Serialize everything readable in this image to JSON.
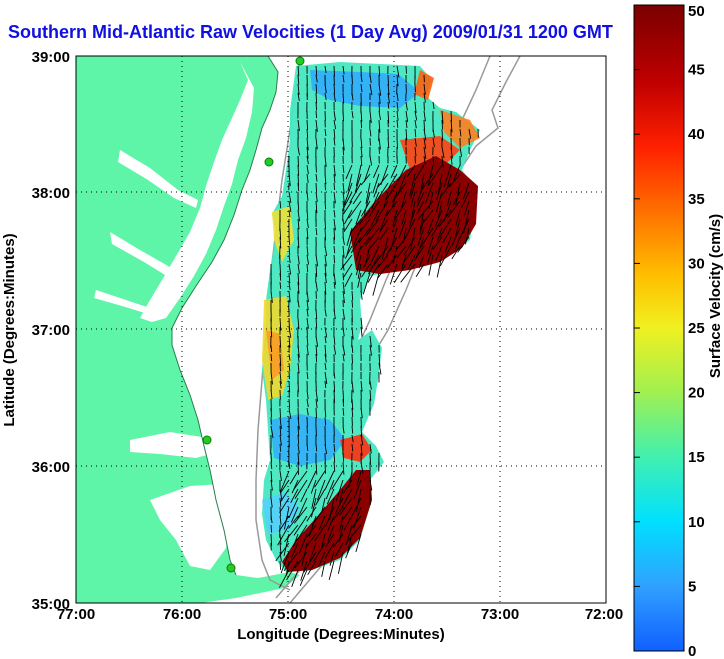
{
  "title": "Southern Mid-Atlantic Raw Velocities (1 Day Avg) 2009/01/31 1200 GMT",
  "x_axis": {
    "label": "Longitude (Degrees:Minutes)",
    "ticks": [
      "77:00",
      "76:00",
      "75:00",
      "74:00",
      "73:00",
      "72:00"
    ]
  },
  "y_axis": {
    "label": "Latitude (Degrees:Minutes)",
    "ticks": [
      "39:00",
      "38:00",
      "37:00",
      "36:00",
      "35:00"
    ]
  },
  "colorbar": {
    "label": "Surface Velocity (cm/s)",
    "ticks": [
      "50",
      "45",
      "40",
      "35",
      "30",
      "25",
      "20",
      "15",
      "10",
      "5",
      "0"
    ],
    "colors": [
      "#7a0000",
      "#c00000",
      "#ff2000",
      "#ff7000",
      "#ffc000",
      "#f0f020",
      "#a0f050",
      "#40f0b0",
      "#00e0ff",
      "#30a0ff",
      "#1060ff"
    ]
  },
  "map_colors": {
    "land": "#5ef5a8",
    "water": "#ffffff",
    "bathymetry": "#999999",
    "station": "#22cc22"
  }
}
